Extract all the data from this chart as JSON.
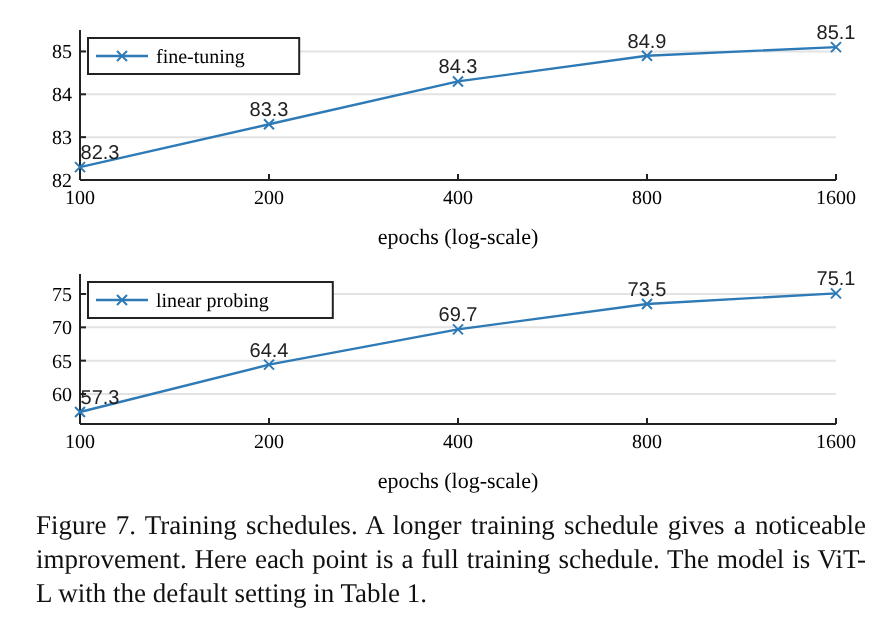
{
  "chart_data": [
    {
      "type": "line",
      "x": [
        100,
        200,
        400,
        800,
        1600
      ],
      "series": [
        {
          "name": "fine-tuning",
          "color": "#2e7ab6",
          "values": [
            82.3,
            83.3,
            84.3,
            84.9,
            85.1
          ]
        }
      ],
      "xlabel": "epochs (log-scale)",
      "xlim": [
        100,
        1600
      ],
      "xticks": [
        100,
        200,
        400,
        800,
        1600
      ],
      "ylim": [
        82,
        85.5
      ],
      "yticks": [
        82,
        83,
        84,
        85
      ],
      "log": "x",
      "grid": "y",
      "legend": "top left",
      "marker": "cross",
      "line_style": "solid",
      "data_labels": true
    },
    {
      "type": "line",
      "x": [
        100,
        200,
        400,
        800,
        1600
      ],
      "series": [
        {
          "name": "linear probing",
          "color": "#2e7ab6",
          "values": [
            57.3,
            64.4,
            69.7,
            73.5,
            75.1
          ]
        }
      ],
      "xlabel": "epochs (log-scale)",
      "xlim": [
        100,
        1600
      ],
      "xticks": [
        100,
        200,
        400,
        800,
        1600
      ],
      "ylim": [
        55.5,
        78
      ],
      "yticks": [
        60,
        65,
        70,
        75
      ],
      "log": "x",
      "grid": "y",
      "legend": "top left",
      "marker": "cross",
      "line_style": "solid",
      "data_labels": true,
      "annotations": [
        "Figure 7. Training schedules. A longer training schedule gives a noticeable improvement. Here each point is a full training schedule. The model is ViT-L with the default setting in Table 1."
      ]
    }
  ]
}
